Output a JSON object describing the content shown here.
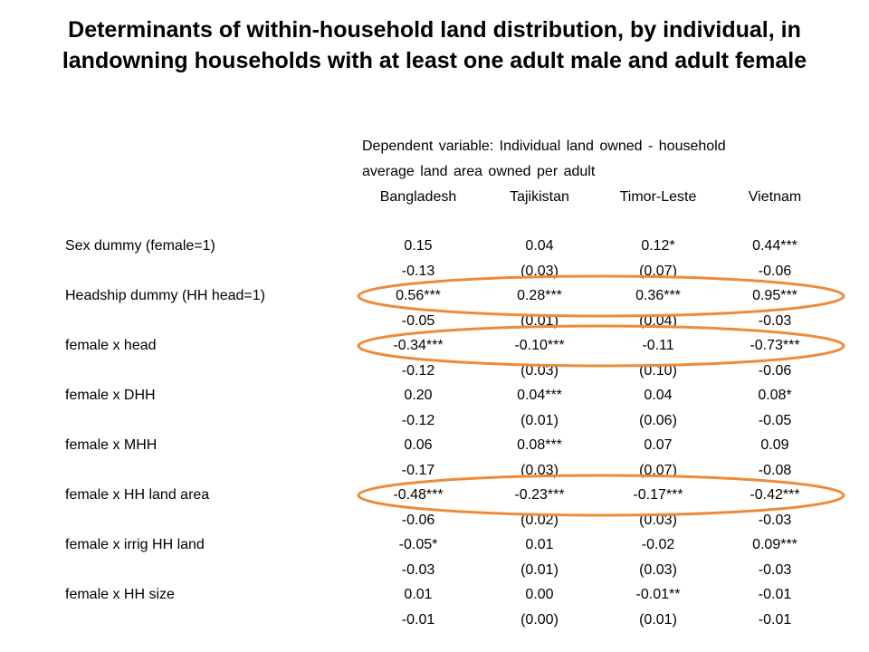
{
  "title": "Determinants of within-household land distribution, by individual, in landowning households with at least one adult male and adult female",
  "dependent_variable": {
    "line1": "Dependent  variable:  Individual land owned -  household",
    "line2": "average land area owned per adult"
  },
  "columns": [
    "Bangladesh",
    "Tajikistan",
    "Timor-Leste",
    "Vietnam"
  ],
  "rows": [
    {
      "label": "Sex dummy (female=1)",
      "coef": [
        "0.15",
        "0.04",
        "0.12*",
        "0.44***"
      ],
      "se": [
        "-0.13",
        "(0.03)",
        "(0.07)",
        "-0.06"
      ]
    },
    {
      "label": "Headship dummy (HH head=1)",
      "coef": [
        "0.56***",
        "0.28***",
        "0.36***",
        "0.95***"
      ],
      "se": [
        "-0.05",
        "(0.01)",
        "(0.04)",
        "-0.03"
      ],
      "highlighted": true
    },
    {
      "label": "female  x head",
      "coef": [
        "-0.34***",
        "-0.10***",
        "-0.11",
        "-0.73***"
      ],
      "se": [
        "-0.12",
        "(0.03)",
        "(0.10)",
        "-0.06"
      ],
      "highlighted": true
    },
    {
      "label": "female  x DHH",
      "coef": [
        "0.20",
        "0.04***",
        "0.04",
        "0.08*"
      ],
      "se": [
        "-0.12",
        "(0.01)",
        "(0.06)",
        "-0.05"
      ]
    },
    {
      "label": "female  x MHH",
      "coef": [
        "0.06",
        "0.08***",
        "0.07",
        "0.09"
      ],
      "se": [
        "-0.17",
        "(0.03)",
        "(0.07)",
        "-0.08"
      ]
    },
    {
      "label": "female  x HH land area",
      "coef": [
        "-0.48***",
        "-0.23***",
        "-0.17***",
        "-0.42***"
      ],
      "se": [
        "-0.06",
        "(0.02)",
        "(0.03)",
        "-0.03"
      ],
      "highlighted": true
    },
    {
      "label": "female  x irrig HH land",
      "coef": [
        "-0.05*",
        "0.01",
        "-0.02",
        "0.09***"
      ],
      "se": [
        "-0.03",
        "(0.01)",
        "(0.03)",
        "-0.03"
      ]
    },
    {
      "label": "female  x HH size",
      "coef": [
        "0.01",
        "0.00",
        "-0.01**",
        "-0.01"
      ],
      "se": [
        "-0.01",
        "(0.00)",
        "(0.01)",
        "-0.01"
      ]
    }
  ],
  "highlight_color": "#ED8B3A"
}
